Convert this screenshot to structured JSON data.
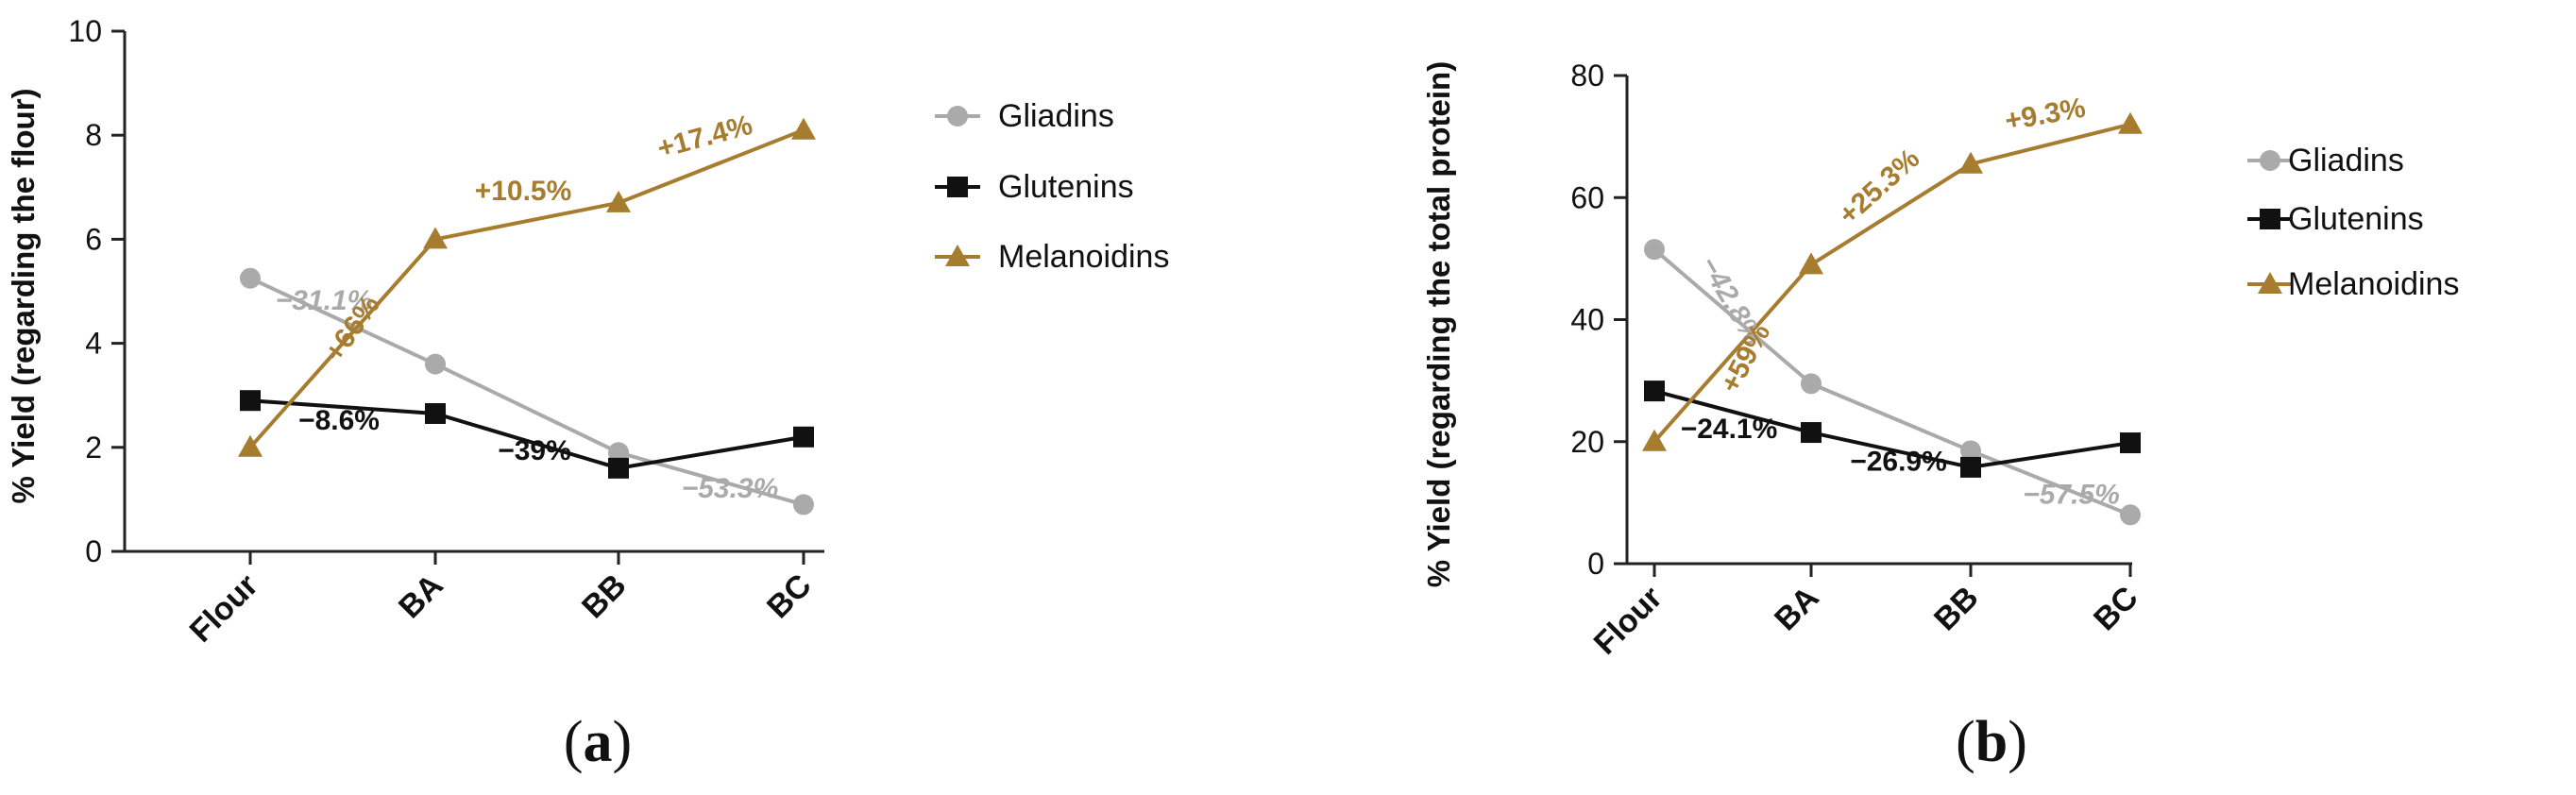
{
  "colors": {
    "gliadins": "#aaaaaa",
    "glutenins": "#111111",
    "melanoidins": "#a67c2e",
    "axis": "#222222"
  },
  "chart_data": [
    {
      "panel_label": "a",
      "type": "line",
      "categories": [
        "Flour",
        "BA",
        "BB",
        "BC"
      ],
      "ylabel": "% Yield (regarding the flour)",
      "ylim": [
        0,
        10
      ],
      "yticks": [
        "0",
        "2",
        "4",
        "6",
        "8",
        "10"
      ],
      "legend_position": "right",
      "series": [
        {
          "name": "Gliadins",
          "marker": "circle",
          "values": [
            5.25,
            3.6,
            1.9,
            0.9
          ]
        },
        {
          "name": "Glutenins",
          "marker": "square",
          "values": [
            2.9,
            2.65,
            1.6,
            2.2
          ]
        },
        {
          "name": "Melanoidins",
          "marker": "triangle",
          "values": [
            2.0,
            6.0,
            6.7,
            8.1
          ]
        }
      ],
      "annotations": [
        {
          "text": "−31.1%",
          "series": "Gliadins",
          "segment": 0
        },
        {
          "text": "−53.3%",
          "series": "Gliadins",
          "segment": 2
        },
        {
          "text": "−8.6%",
          "series": "Glutenins",
          "segment": 0
        },
        {
          "text": "−39%",
          "series": "Glutenins",
          "segment": 1
        },
        {
          "text": "+66%",
          "series": "Melanoidins",
          "segment": 0
        },
        {
          "text": "+10.5%",
          "series": "Melanoidins",
          "segment": 1
        },
        {
          "text": "+17.4%",
          "series": "Melanoidins",
          "segment": 2
        }
      ]
    },
    {
      "panel_label": "b",
      "type": "line",
      "categories": [
        "Flour",
        "BA",
        "BB",
        "BC"
      ],
      "ylabel": "% Yield (regarding the total protein)",
      "ylim": [
        0,
        80
      ],
      "yticks": [
        "0",
        "20",
        "40",
        "60",
        "80"
      ],
      "legend_position": "right",
      "series": [
        {
          "name": "Gliadins",
          "marker": "circle",
          "values": [
            51.5,
            29.5,
            18.5,
            8.0
          ]
        },
        {
          "name": "Glutenins",
          "marker": "square",
          "values": [
            28.3,
            21.5,
            15.8,
            19.8
          ]
        },
        {
          "name": "Melanoidins",
          "marker": "triangle",
          "values": [
            20.0,
            49.0,
            65.5,
            72.0
          ]
        }
      ],
      "annotations": [
        {
          "text": "−42.8%",
          "series": "Gliadins",
          "segment": 0
        },
        {
          "text": "−57.5%",
          "series": "Gliadins",
          "segment": 2
        },
        {
          "text": "−24.1%",
          "series": "Glutenins",
          "segment": 0
        },
        {
          "text": "−26.9%",
          "series": "Glutenins",
          "segment": 1
        },
        {
          "text": "+59%",
          "series": "Melanoidins",
          "segment": 0
        },
        {
          "text": "+25.3%",
          "series": "Melanoidins",
          "segment": 1
        },
        {
          "text": "+9.3%",
          "series": "Melanoidins",
          "segment": 2
        }
      ]
    }
  ]
}
